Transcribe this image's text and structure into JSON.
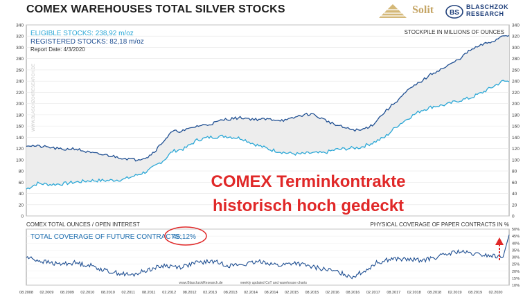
{
  "title": "COMEX WAREHOUSES  TOTAL SILVER STOCKS",
  "logos": {
    "solit_text": "Solit",
    "blaschzok_line1": "BLASCHZOK",
    "blaschzok_line2": "RESEARCH",
    "blaschzok_mark": "BS"
  },
  "colors": {
    "eligible": "#2aa7d6",
    "registered": "#1f4f92",
    "band": "#ededed",
    "annotation": "#e02828"
  },
  "upper_panel": {
    "legend": {
      "eligible": "ELIGIBLE STOCKS: 238,92 m/oz",
      "registered": "REGISTERED STOCKS: 82,18 m/oz",
      "report_date": "Report Date: 4/3/2020"
    },
    "axis_title_right": "STOCKPILE IN MILLIONS OF OUNCES",
    "watermark": "WWW.BLASCHZOKRESEARCH.DE"
  },
  "annotation": {
    "line1": "COMEX Terminkontrakte",
    "line2": "historisch hoch gedeckt"
  },
  "lower_panel": {
    "left_title": "COMEX TOTAL OUNCES / OPEN INTEREST",
    "right_title": "PHYSICAL COVERAGE OF PAPER CONTRACTS IN %",
    "coverage_label": "TOTAL COVERAGE OF FUTURE CONTRACTS:",
    "coverage_value": "46,12%",
    "footer_left": "www.BlaschzokResearch.de",
    "footer_right": "weekly updated CoT and warehouse charts"
  },
  "chart_data": [
    {
      "type": "area",
      "ylabel": "STOCKPILE IN MILLIONS OF OUNCES",
      "ylim": [
        0,
        340
      ],
      "yticks": [
        0,
        20,
        40,
        60,
        80,
        100,
        120,
        140,
        160,
        180,
        200,
        220,
        240,
        260,
        280,
        300,
        320,
        340
      ],
      "x_range": [
        2008.42,
        2020.25
      ],
      "grid": true,
      "legend_position": "top-left",
      "series": [
        {
          "name": "ELIGIBLE STOCKS",
          "x": [
            2008.42,
            2008.7,
            2009.0,
            2009.3,
            2009.6,
            2010.0,
            2010.4,
            2010.8,
            2011.1,
            2011.4,
            2011.6,
            2011.8,
            2012.0,
            2012.3,
            2012.6,
            2012.9,
            2013.3,
            2013.7,
            2014.0,
            2014.4,
            2014.8,
            2015.1,
            2015.4,
            2015.7,
            2016.0,
            2016.3,
            2016.6,
            2016.9,
            2017.2,
            2017.5,
            2017.8,
            2018.1,
            2018.4,
            2018.7,
            2019.0,
            2019.3,
            2019.6,
            2019.9,
            2020.1,
            2020.25
          ],
          "values": [
            48,
            58,
            56,
            57,
            60,
            63,
            63,
            65,
            72,
            80,
            90,
            100,
            115,
            120,
            135,
            140,
            142,
            138,
            128,
            118,
            112,
            110,
            112,
            112,
            118,
            120,
            122,
            130,
            140,
            160,
            175,
            188,
            195,
            198,
            205,
            210,
            220,
            232,
            240,
            239
          ]
        },
        {
          "name": "TOTAL STOCKS",
          "x": [
            2008.42,
            2008.7,
            2009.0,
            2009.3,
            2009.6,
            2010.0,
            2010.4,
            2010.8,
            2011.1,
            2011.4,
            2011.6,
            2011.8,
            2012.0,
            2012.3,
            2012.6,
            2012.9,
            2013.3,
            2013.7,
            2014.0,
            2014.4,
            2014.8,
            2015.1,
            2015.4,
            2015.7,
            2016.0,
            2016.3,
            2016.6,
            2016.9,
            2017.2,
            2017.5,
            2017.8,
            2018.1,
            2018.4,
            2018.7,
            2019.0,
            2019.3,
            2019.6,
            2019.9,
            2020.1,
            2020.25
          ],
          "values": [
            126,
            124,
            122,
            118,
            120,
            112,
            108,
            103,
            100,
            105,
            118,
            135,
            150,
            152,
            160,
            163,
            172,
            175,
            172,
            172,
            170,
            178,
            182,
            172,
            162,
            155,
            152,
            162,
            185,
            205,
            225,
            240,
            255,
            265,
            278,
            295,
            305,
            312,
            322,
            321
          ]
        }
      ]
    },
    {
      "type": "line",
      "ylabel": "PHYSICAL COVERAGE OF PAPER CONTRACTS IN %",
      "ylim": [
        10,
        50
      ],
      "yticks": [
        10,
        15,
        20,
        25,
        30,
        35,
        40,
        45,
        50
      ],
      "x_range": [
        2008.42,
        2020.25
      ],
      "grid": true,
      "xticks": [
        "08.2008",
        "02.2009",
        "08.2009",
        "02.2010",
        "08.2010",
        "02.2011",
        "08.2011",
        "02.2012",
        "08.2012",
        "02.2013",
        "08.2013",
        "02.2014",
        "08.2014",
        "02.2015",
        "08.2015",
        "02.2016",
        "08.2016",
        "02.2017",
        "08.2017",
        "02.2018",
        "08.2018",
        "02.2019",
        "08.2019",
        "02.2020"
      ],
      "series": [
        {
          "name": "TOTAL COVERAGE OF FUTURE CONTRACTS",
          "x": [
            2008.42,
            2008.8,
            2009.2,
            2009.6,
            2010.0,
            2010.4,
            2010.8,
            2011.0,
            2011.4,
            2011.8,
            2012.2,
            2012.6,
            2013.0,
            2013.4,
            2013.8,
            2014.2,
            2014.6,
            2015.0,
            2015.4,
            2015.8,
            2016.1,
            2016.4,
            2016.7,
            2017.0,
            2017.4,
            2017.8,
            2018.2,
            2018.6,
            2019.0,
            2019.4,
            2019.8,
            2020.1,
            2020.25
          ],
          "values": [
            30,
            27,
            25,
            26,
            24,
            20,
            18,
            17,
            21,
            24,
            23,
            26,
            27,
            24,
            25,
            27,
            24,
            26,
            23,
            21,
            19,
            16,
            20,
            26,
            29,
            28,
            28,
            31,
            34,
            32,
            31,
            30,
            46
          ]
        }
      ]
    }
  ]
}
